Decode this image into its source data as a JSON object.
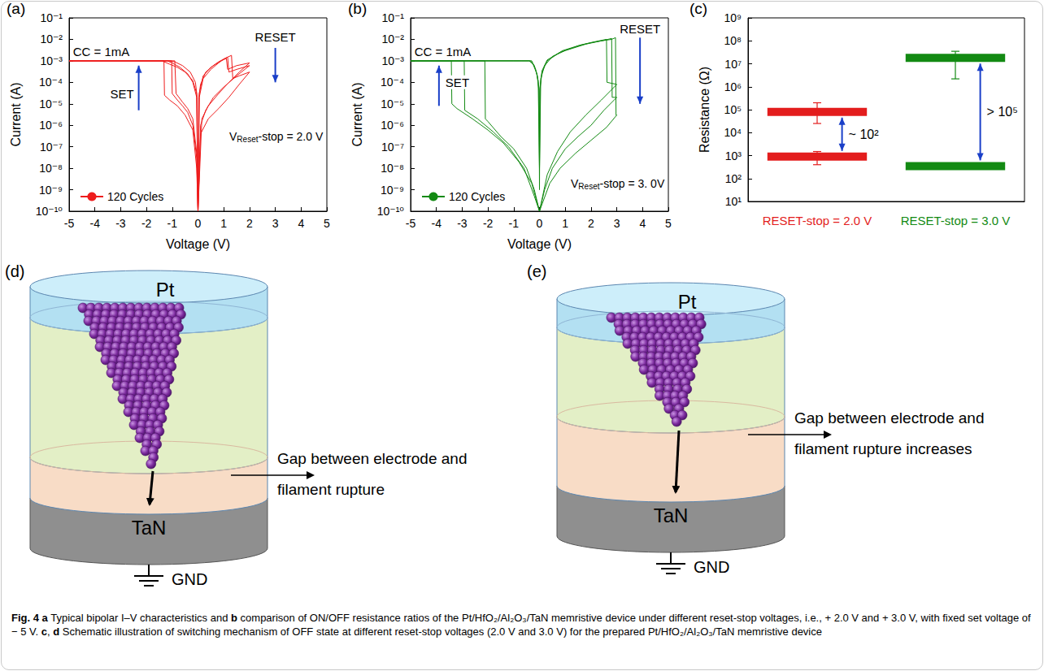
{
  "chart_data": [
    {
      "panel": "(a)",
      "type": "line",
      "x_label": "Voltage (V)",
      "y_label": "Current (A)",
      "xlim": [
        -5,
        5
      ],
      "xticks": [
        -5,
        -4,
        -3,
        -2,
        -1,
        0,
        1,
        2,
        3,
        4,
        5
      ],
      "ylim": [
        1e-10,
        0.1
      ],
      "yticks": [
        {
          "value": 1e-10,
          "label": "10⁻¹⁰"
        },
        {
          "value": 1e-09,
          "label": "10⁻⁹"
        },
        {
          "value": 1e-08,
          "label": "10⁻⁸"
        },
        {
          "value": 1e-07,
          "label": "10⁻⁷"
        },
        {
          "value": 1e-06,
          "label": "10⁻⁶"
        },
        {
          "value": 1e-05,
          "label": "10⁻⁵"
        },
        {
          "value": 0.0001,
          "label": "10⁻⁴"
        },
        {
          "value": 0.001,
          "label": "10⁻³"
        },
        {
          "value": 0.01,
          "label": "10⁻²"
        },
        {
          "value": 0.1,
          "label": "10⁻¹"
        }
      ],
      "log": "y",
      "grid": false,
      "legend": "lower left",
      "annotations": {
        "compliance": "CC = 1mA",
        "set": "SET",
        "reset": "RESET",
        "stop": [
          "V",
          "Reset",
          "-stop = 2.0 V"
        ]
      },
      "series": [
        {
          "name": "120 Cycles",
          "color": "#ee1c1c",
          "x": [
            0,
            -0.05,
            -0.2,
            -0.4,
            -0.6,
            -0.8,
            -1.0,
            -1.02,
            -5,
            -1.2,
            -1.0,
            -0.7,
            -0.4,
            -0.2,
            -0.05,
            0,
            0.05,
            0.2,
            0.5,
            0.8,
            1.0,
            1.15,
            1.2,
            1.5,
            2.0,
            1.5,
            1.0,
            0.6,
            0.3,
            0.1,
            0,
            0,
            -0.05,
            -0.2,
            -0.5,
            -0.8,
            -1.1,
            -1.3,
            -1.32,
            -5,
            -1.4,
            -1.1,
            -0.8,
            -0.5,
            -0.2,
            -0.05,
            0,
            0.05,
            0.2,
            0.5,
            0.8,
            1.1,
            1.3,
            1.35,
            1.6,
            2.0,
            1.6,
            1.2,
            0.8,
            0.4,
            0.1,
            0,
            0,
            -0.05,
            -0.2,
            -0.4,
            -0.6,
            -0.85,
            -0.9,
            -5,
            -1.1,
            -0.9,
            -0.6,
            -0.3,
            -0.1,
            -0.03,
            0,
            0.03,
            0.1,
            0.3,
            0.6,
            0.9,
            1.1,
            1.15,
            1.5,
            2.0,
            1.6,
            1.2,
            0.8,
            0.4,
            0.15,
            0
          ],
          "values": [
            1e-10,
            3e-08,
            1e-06,
            4e-06,
            8e-06,
            1.5e-05,
            3e-05,
            0.001,
            0.001,
            0.001,
            0.0008,
            0.0005,
            0.00025,
            0.0001,
            2e-05,
            1e-10,
            2e-05,
            0.00015,
            0.0004,
            0.0008,
            0.0012,
            0.0015,
            0.0003,
            0.0004,
            0.0006,
            0.0002,
            6e-05,
            2e-05,
            5e-06,
            1e-06,
            1e-10,
            1e-10,
            1e-08,
            6e-07,
            3e-06,
            8e-06,
            1.5e-05,
            2.5e-05,
            0.001,
            0.001,
            0.001,
            0.0007,
            0.0005,
            0.0003,
            0.00012,
            3e-05,
            1e-10,
            3e-05,
            0.0002,
            0.0005,
            0.0009,
            0.0014,
            0.0018,
            0.00015,
            0.0002,
            0.0003,
            8e-05,
            2e-05,
            6e-06,
            2e-06,
            4e-07,
            1e-10,
            1e-10,
            5e-08,
            2e-06,
            6e-06,
            1.2e-05,
            3e-05,
            0.001,
            0.001,
            0.001,
            0.0009,
            0.0006,
            0.0003,
            0.0001,
            2e-05,
            1e-10,
            2e-05,
            8e-05,
            0.0003,
            0.0006,
            0.001,
            0.0013,
            0.0004,
            0.0006,
            0.0008,
            0.0003,
            0.0001,
            3e-05,
            8e-06,
            2e-06,
            1e-10
          ]
        }
      ]
    },
    {
      "panel": "(b)",
      "type": "line",
      "x_label": "Voltage (V)",
      "y_label": "Current (A)",
      "xlim": [
        -5,
        5
      ],
      "xticks": [
        -5,
        -4,
        -3,
        -2,
        -1,
        0,
        1,
        2,
        3,
        4,
        5
      ],
      "ylim": [
        1e-10,
        0.1
      ],
      "yticks": [
        {
          "value": 1e-10,
          "label": "10⁻¹⁰"
        },
        {
          "value": 1e-09,
          "label": "10⁻⁹"
        },
        {
          "value": 1e-08,
          "label": "10⁻⁸"
        },
        {
          "value": 1e-07,
          "label": "10⁻⁷"
        },
        {
          "value": 1e-06,
          "label": "10⁻⁶"
        },
        {
          "value": 1e-05,
          "label": "10⁻⁵"
        },
        {
          "value": 0.0001,
          "label": "10⁻⁴"
        },
        {
          "value": 0.001,
          "label": "10⁻³"
        },
        {
          "value": 0.01,
          "label": "10⁻²"
        },
        {
          "value": 0.1,
          "label": "10⁻¹"
        }
      ],
      "log": "y",
      "grid": false,
      "legend": "lower left",
      "annotations": {
        "compliance": "CC = 1mA",
        "set": "SET",
        "reset": "RESET",
        "stop": [
          "V",
          "Reset",
          "-stop = 3. 0V"
        ]
      },
      "series": [
        {
          "name": "120 Cycles",
          "color": "#138a13",
          "x": [
            0,
            -0.2,
            -0.5,
            -1.0,
            -1.5,
            -2.0,
            -2.1,
            -2.12,
            -5,
            -1.0,
            -0.4,
            -0.25,
            -0.1,
            -0.02,
            0,
            0.02,
            0.1,
            0.3,
            0.8,
            1.5,
            2.0,
            2.5,
            2.8,
            2.82,
            3.0,
            2.5,
            2.0,
            1.5,
            1.0,
            0.5,
            0.2,
            0,
            0,
            -0.2,
            -0.6,
            -1.2,
            -1.8,
            -2.4,
            -2.9,
            -2.92,
            -5,
            -0.8,
            -0.35,
            -0.2,
            -0.08,
            -0.02,
            0,
            0.02,
            0.1,
            0.3,
            0.9,
            1.6,
            2.2,
            2.6,
            2.62,
            3.0,
            2.4,
            1.8,
            1.2,
            0.7,
            0.3,
            0,
            0,
            -0.3,
            -0.8,
            -1.4,
            -2.0,
            -2.6,
            -3.2,
            -3.4,
            -3.42,
            -5,
            -0.7,
            -0.3,
            -0.15,
            -0.05,
            0,
            0.05,
            0.2,
            0.5,
            1.0,
            1.8,
            2.4,
            2.8,
            2.95,
            2.97,
            3.0,
            2.6,
            2.0,
            1.4,
            0.8,
            0.4,
            0
          ],
          "values": [
            1e-10,
            1e-09,
            1e-08,
            8e-08,
            3e-07,
            1.5e-06,
            2e-06,
            0.001,
            0.001,
            0.001,
            0.001,
            0.0007,
            0.00025,
            4e-05,
            1e-08,
            5e-05,
            0.0003,
            0.001,
            0.0025,
            0.005,
            0.007,
            0.009,
            0.011,
            2e-05,
            2e-05,
            5e-06,
            1e-06,
            3e-07,
            8e-08,
            1e-08,
            1e-09,
            1e-10,
            1e-10,
            5e-10,
            1e-08,
            1e-07,
            5e-07,
            2e-06,
            5e-06,
            0.001,
            0.001,
            0.001,
            0.001,
            0.0006,
            0.0002,
            5e-05,
            1e-09,
            6e-05,
            0.00035,
            0.0011,
            0.003,
            0.0055,
            0.008,
            0.01,
            0.0001,
            8e-05,
            1.5e-05,
            3e-06,
            5e-07,
            6e-08,
            5e-09,
            1e-10,
            1e-10,
            2e-09,
            2e-08,
            1.5e-07,
            6e-07,
            2e-06,
            6e-06,
            1e-05,
            0.001,
            0.001,
            0.001,
            0.001,
            0.0004,
            0.00012,
            1e-08,
            0.00015,
            0.0006,
            0.0016,
            0.003,
            0.006,
            0.0085,
            0.01,
            0.012,
            3e-06,
            3e-06,
            8e-07,
            2e-07,
            5e-08,
            1e-08,
            2e-09,
            1e-10
          ]
        }
      ]
    },
    {
      "panel": "(c)",
      "type": "errorbar",
      "y_label": "Resistance (Ω)",
      "categories": [
        "RESET-stop = 2.0 V",
        "RESET-stop = 3.0 V"
      ],
      "colors": [
        "#e31d1d",
        "#138a13"
      ],
      "ylim": [
        10,
        1000000000
      ],
      "yticks": [
        {
          "value": 10,
          "label": "10¹"
        },
        {
          "value": 100,
          "label": "10²"
        },
        {
          "value": 1000,
          "label": "10³"
        },
        {
          "value": 10000,
          "label": "10⁴"
        },
        {
          "value": 100000,
          "label": "10⁵"
        },
        {
          "value": 1000000,
          "label": "10⁶"
        },
        {
          "value": 10000000,
          "label": "10⁷"
        },
        {
          "value": 100000000,
          "label": "10⁸"
        },
        {
          "value": 1000000000,
          "label": "10⁹"
        }
      ],
      "log": "y",
      "grid": false,
      "series": [
        {
          "values": [
            80000,
            18000000
          ],
          "error_low": [
            25000,
            2200000
          ],
          "error_high": [
            200000,
            35000000
          ]
        },
        {
          "values": [
            900,
            350
          ],
          "error_low": [
            400,
            320
          ],
          "error_high": [
            1500,
            450
          ]
        }
      ],
      "ratio_labels": [
        "~ 10²",
        "> 10⁵"
      ]
    }
  ],
  "diagrams": [
    {
      "panel": "(d)",
      "top_electrode": "Pt",
      "bottom_electrode": "TaN",
      "ground": "GND",
      "note": [
        "Gap between electrode and",
        "filament rupture"
      ]
    },
    {
      "panel": "(e)",
      "top_electrode": "Pt",
      "bottom_electrode": "TaN",
      "ground": "GND",
      "note": [
        "Gap between electrode and",
        "filament rupture increases"
      ]
    }
  ],
  "caption": [
    {
      "text": "Fig. 4",
      "bold": true
    },
    {
      "text": " "
    },
    {
      "text": "a",
      "bold": true
    },
    {
      "text": " Typical bipolar I–V characteristics and "
    },
    {
      "text": "b",
      "bold": true
    },
    {
      "text": " comparison of ON/OFF resistance ratios of the Pt/HfO₂/Al₂O₃/TaN memristive device under different reset-stop voltages, i.e., + 2.0 V and + 3.0 V, with fixed set voltage of − 5 V. "
    },
    {
      "text": "c",
      "bold": true
    },
    {
      "text": ", "
    },
    {
      "text": "d",
      "bold": true
    },
    {
      "text": " Schematic illustration of switching mechanism of OFF state at different reset-stop voltages (2.0 V and 3.0 V) for the prepared Pt/HfO₂/Al₂O₃/TaN memristive device"
    }
  ]
}
